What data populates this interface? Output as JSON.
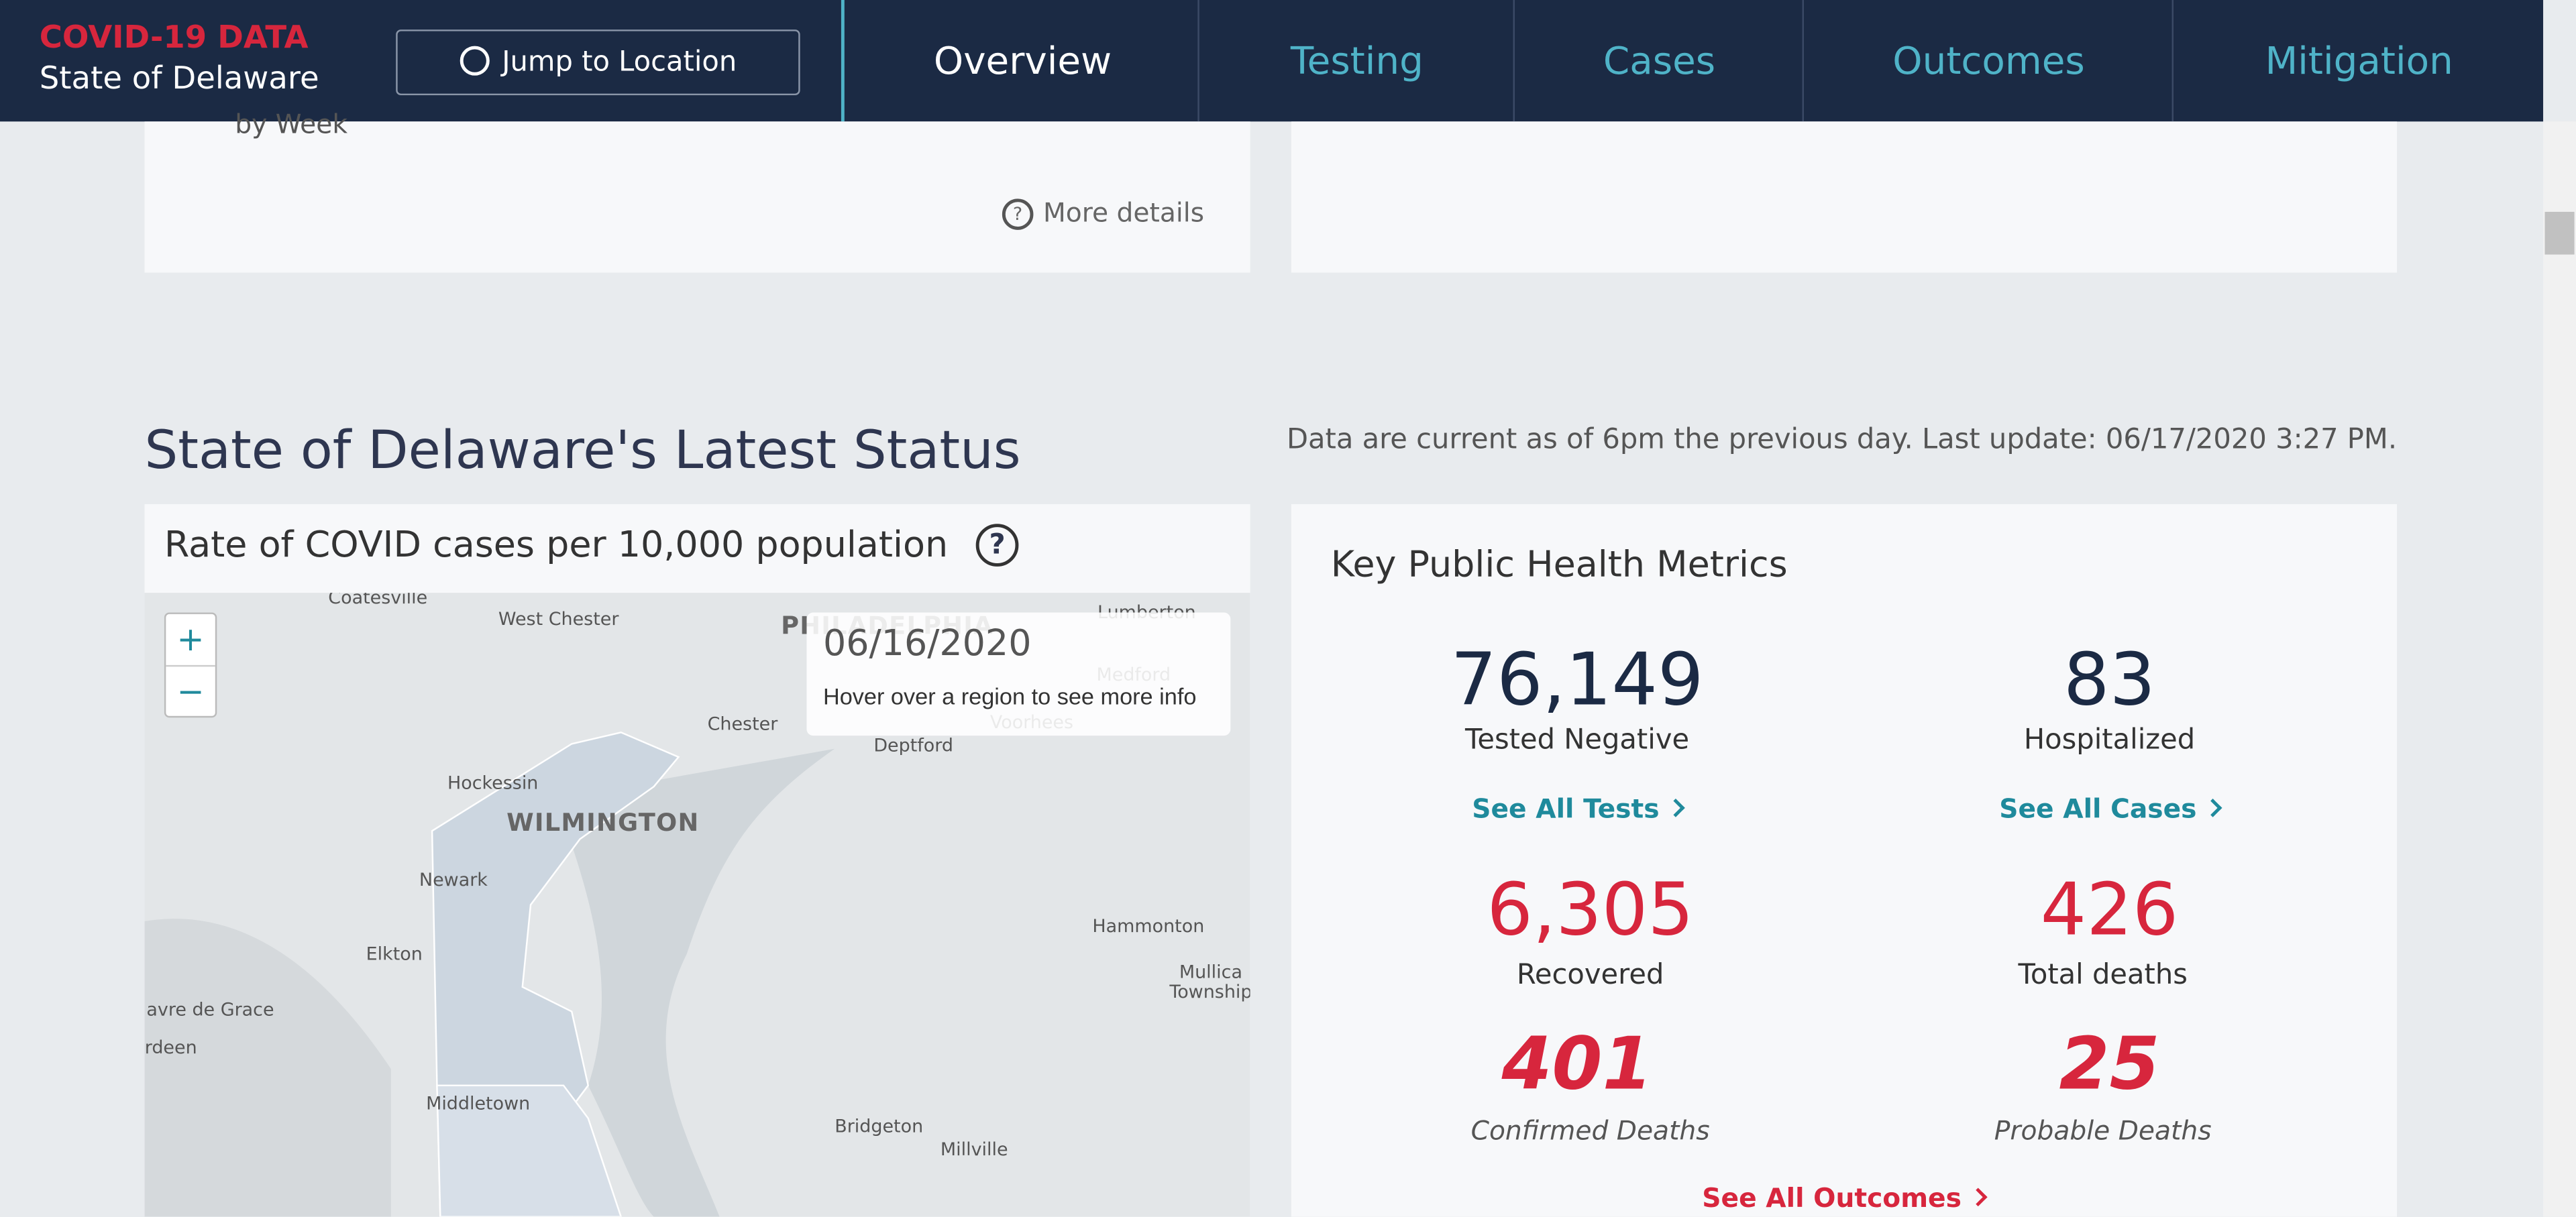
{
  "header": {
    "brand": "COVID-19 DATA",
    "state": "State of Delaware",
    "jump_button": "Jump to Location"
  },
  "nav": [
    "Overview",
    "Testing",
    "Cases",
    "Outcomes",
    "Mitigation"
  ],
  "top_card": {
    "caption": "by Week",
    "more_details": "More details"
  },
  "status": {
    "title": "State of Delaware's Latest Status",
    "updated": "Data are current as of 6pm the previous day. Last update: 06/17/2020 3:27 PM."
  },
  "map_card": {
    "title": "Rate of COVID cases per 10,000 population",
    "zoom_in": "+",
    "zoom_out": "−",
    "tooltip_date": "06/16/2020",
    "tooltip_hint": "Hover over a region to see more info",
    "places": [
      "Coatesville",
      "West Chester",
      "PHILADELPHIA",
      "Lumberton",
      "Medford",
      "Chester",
      "Voorhees",
      "Deptford",
      "Hockessin",
      "WILMINGTON",
      "Newark",
      "Hammonton",
      "Elkton",
      "Mullica",
      "Township",
      "avre de Grace",
      "rdeen",
      "Middletown",
      "Bridgeton",
      "Millville"
    ]
  },
  "metrics": {
    "title": "Key Public Health Metrics",
    "items": [
      {
        "value": "76,149",
        "label": "Tested Negative"
      },
      {
        "value": "83",
        "label": "Hospitalized"
      },
      {
        "value": "6,305",
        "label": "Recovered"
      },
      {
        "value": "426",
        "label": "Total deaths"
      },
      {
        "value": "401",
        "label": "Confirmed Deaths"
      },
      {
        "value": "25",
        "label": "Probable Deaths"
      }
    ],
    "links": [
      "See All Tests",
      "See All Cases",
      "See All Outcomes"
    ]
  }
}
